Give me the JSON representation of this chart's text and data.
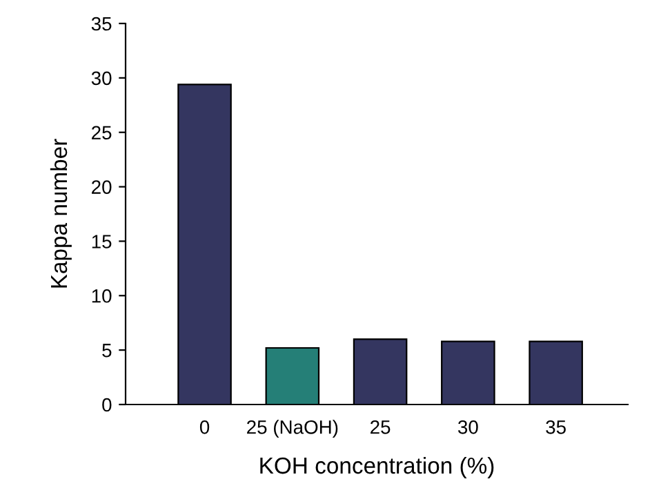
{
  "chart_data": {
    "type": "bar",
    "xlabel": "KOH concentration (%)",
    "ylabel": "Kappa number",
    "categories": [
      "0",
      "25 (NaOH)",
      "25",
      "30",
      "35"
    ],
    "values": [
      29.4,
      5.2,
      6.0,
      5.8,
      5.8
    ],
    "colors": [
      "#343660",
      "#257f77",
      "#343660",
      "#343660",
      "#343660"
    ],
    "ylim": [
      0,
      35
    ],
    "yticks": [
      0,
      5,
      10,
      15,
      20,
      25,
      30,
      35
    ],
    "grid": false,
    "legend": false
  }
}
